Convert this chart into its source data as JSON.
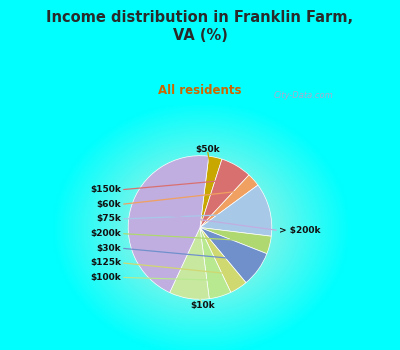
{
  "title": "Income distribution in Franklin Farm,\nVA (%)",
  "subtitle": "All residents",
  "title_color": "#2a2a2a",
  "subtitle_color": "#cc6600",
  "bg_top": "#00FFFF",
  "watermark": "City-Data.com",
  "labels": [
    "$50k",
    "$150k",
    "$60k",
    "$75k",
    "$200k",
    "$30k",
    "$125k",
    "$100k",
    "$10k",
    "> $200k"
  ],
  "sizes": [
    3,
    7,
    3,
    12,
    4,
    8,
    4,
    5,
    9,
    45
  ],
  "colors": [
    "#c8a800",
    "#d97070",
    "#f0a060",
    "#a8c8e8",
    "#b0d870",
    "#7090cc",
    "#d0d870",
    "#b8e890",
    "#c8e8a0",
    "#c0aee0"
  ],
  "startangle": 83
}
